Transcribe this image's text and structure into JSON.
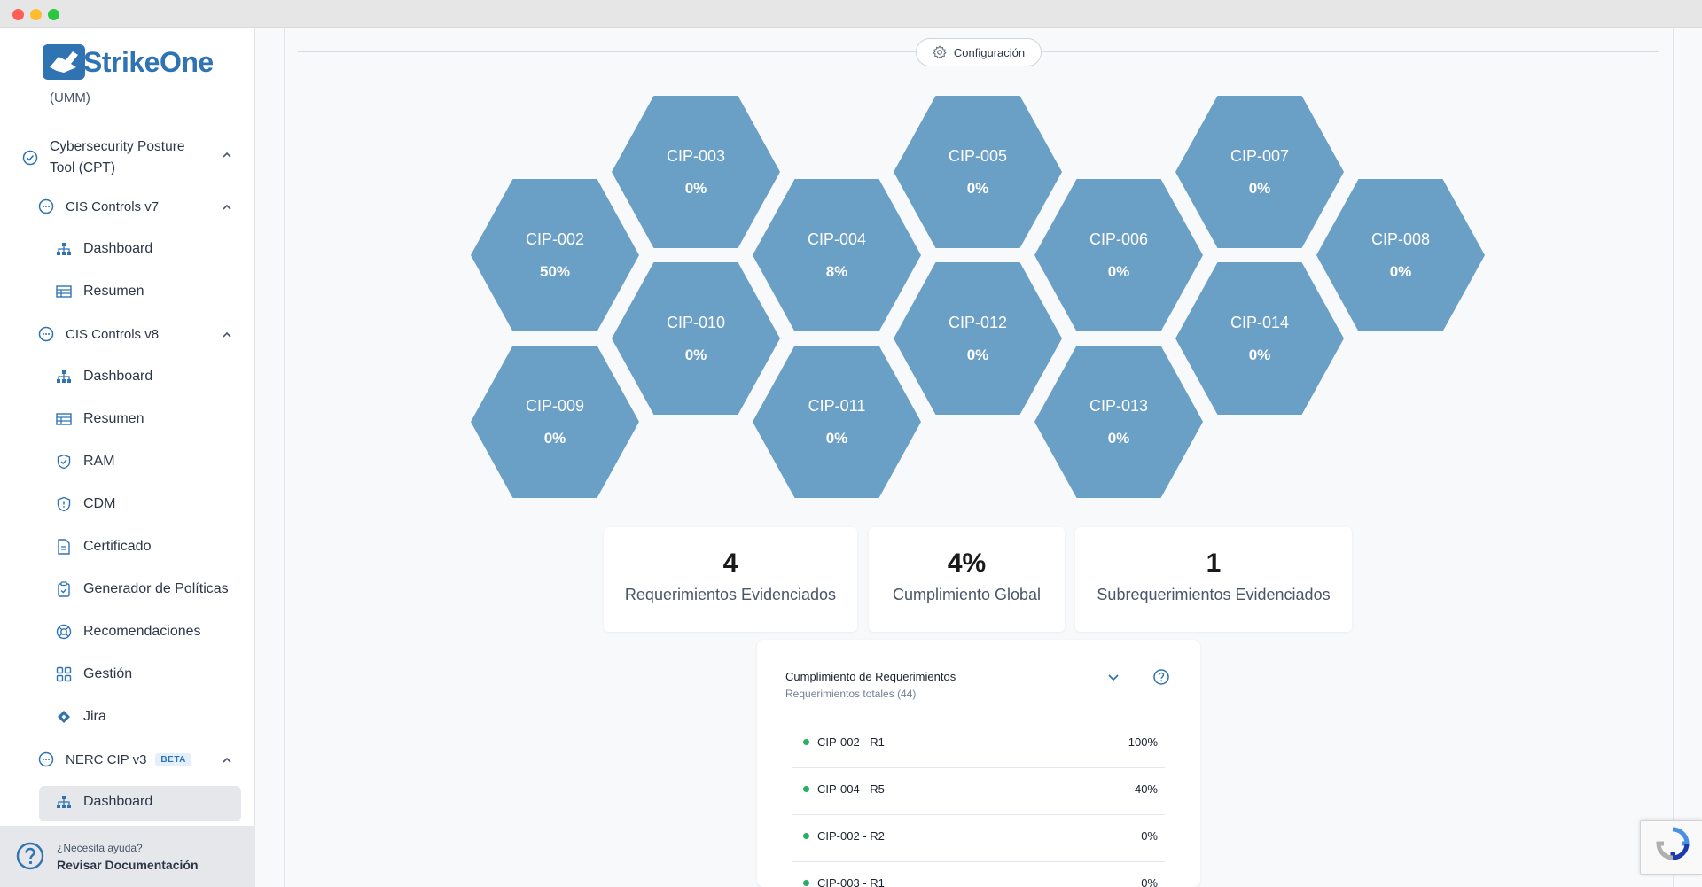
{
  "sidebar": {
    "logo_text": "StrikeOne",
    "partial_item": "(UMM)",
    "cpt": {
      "label": "Cybersecurity Posture Tool (CPT)"
    },
    "cis_v7": {
      "label": "CIS Controls v7",
      "items": [
        {
          "label": "Dashboard",
          "icon": "sitemap-icon"
        },
        {
          "label": "Resumen",
          "icon": "table-icon"
        }
      ]
    },
    "cis_v8": {
      "label": "CIS Controls v8",
      "items": [
        {
          "label": "Dashboard",
          "icon": "sitemap-icon"
        },
        {
          "label": "Resumen",
          "icon": "table-icon"
        },
        {
          "label": "RAM",
          "icon": "shield-check-icon"
        },
        {
          "label": "CDM",
          "icon": "shield-alert-icon"
        },
        {
          "label": "Certificado",
          "icon": "document-icon"
        },
        {
          "label": "Generador de Políticas",
          "icon": "clipboard-icon"
        },
        {
          "label": "Recomendaciones",
          "icon": "lifebuoy-icon"
        },
        {
          "label": "Gestión",
          "icon": "grid-icon"
        },
        {
          "label": "Jira",
          "icon": "jira-icon"
        }
      ]
    },
    "nerc": {
      "label": "NERC CIP v3",
      "badge": "BETA",
      "items": [
        {
          "label": "Dashboard",
          "icon": "sitemap-icon",
          "active": true
        }
      ]
    },
    "help": {
      "question": "¿Necesita ayuda?",
      "link": "Revisar Documentación"
    }
  },
  "header": {
    "config_label": "Configuración"
  },
  "hexagons": [
    {
      "name": "CIP-003",
      "value": "0%"
    },
    {
      "name": "CIP-005",
      "value": "0%"
    },
    {
      "name": "CIP-007",
      "value": "0%"
    },
    {
      "name": "CIP-002",
      "value": "50%"
    },
    {
      "name": "CIP-004",
      "value": "8%"
    },
    {
      "name": "CIP-006",
      "value": "0%"
    },
    {
      "name": "CIP-008",
      "value": "0%"
    },
    {
      "name": "CIP-010",
      "value": "0%"
    },
    {
      "name": "CIP-012",
      "value": "0%"
    },
    {
      "name": "CIP-014",
      "value": "0%"
    },
    {
      "name": "CIP-009",
      "value": "0%"
    },
    {
      "name": "CIP-011",
      "value": "0%"
    },
    {
      "name": "CIP-013",
      "value": "0%"
    }
  ],
  "stats": [
    {
      "value": "4",
      "label": "Requerimientos Evidenciados"
    },
    {
      "value": "4%",
      "label": "Cumplimiento Global"
    },
    {
      "value": "1",
      "label": "Subrequerimientos Evidenciados"
    }
  ],
  "compliance": {
    "title": "Cumplimiento de Requerimientos",
    "subtitle": "Requerimientos totales (44)",
    "rows": [
      {
        "name": "CIP-002 - R1",
        "value": "100%"
      },
      {
        "name": "CIP-004 - R5",
        "value": "40%"
      },
      {
        "name": "CIP-002 - R2",
        "value": "0%"
      },
      {
        "name": "CIP-003 - R1",
        "value": "0%"
      }
    ]
  },
  "colors": {
    "accent": "#2f73b3",
    "hexagon": "#6a9fc6",
    "status_ok": "#27ae60"
  }
}
